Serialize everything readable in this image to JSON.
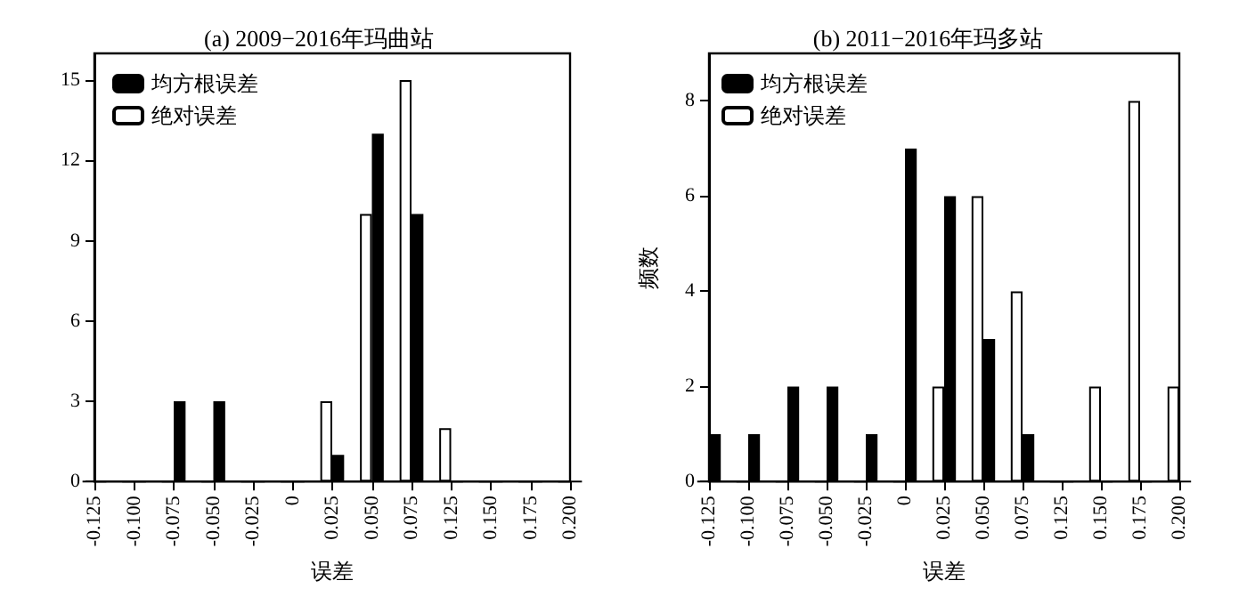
{
  "chart_data": [
    {
      "type": "bar",
      "title": "(a) 2009−2016年玛曲站",
      "xlabel": "误差",
      "categories": [
        "-0.125",
        "-0.100",
        "-0.075",
        "-0.050",
        "-0.025",
        "0",
        "0.025",
        "0.050",
        "0.075",
        "0.125",
        "0.150",
        "0.175",
        "0.200"
      ],
      "series": [
        {
          "name": "均方根误差",
          "color": "#000000",
          "values": [
            0,
            0,
            3,
            3,
            0,
            0,
            1,
            13,
            10,
            0,
            0,
            0,
            0
          ]
        },
        {
          "name": "绝对误差",
          "color": "#ffffff",
          "values": [
            0,
            0,
            0,
            0,
            0,
            0,
            3,
            10,
            15,
            2,
            0,
            0,
            0
          ]
        }
      ],
      "ylim": [
        0,
        16
      ],
      "yticks": [
        0,
        3,
        6,
        9,
        12,
        15
      ],
      "grid": false,
      "legend": "top left"
    },
    {
      "type": "bar",
      "title": "(b) 2011−2016年玛多站",
      "xlabel": "误差",
      "ylabel": "频数",
      "categories": [
        "-0.125",
        "-0.100",
        "-0.075",
        "-0.050",
        "-0.025",
        "0",
        "0.025",
        "0.050",
        "0.075",
        "0.125",
        "0.150",
        "0.175",
        "0.200"
      ],
      "series": [
        {
          "name": "均方根误差",
          "color": "#000000",
          "values": [
            1,
            1,
            2,
            2,
            1,
            7,
            6,
            3,
            1,
            0,
            0,
            0,
            0
          ]
        },
        {
          "name": "绝对误差",
          "color": "#ffffff",
          "values": [
            0,
            0,
            0,
            0,
            0,
            0,
            2,
            6,
            4,
            0,
            2,
            8,
            2
          ]
        }
      ],
      "ylim": [
        0,
        9
      ],
      "yticks": [
        0,
        2,
        4,
        6,
        8
      ],
      "grid": false,
      "legend": "top left"
    }
  ]
}
